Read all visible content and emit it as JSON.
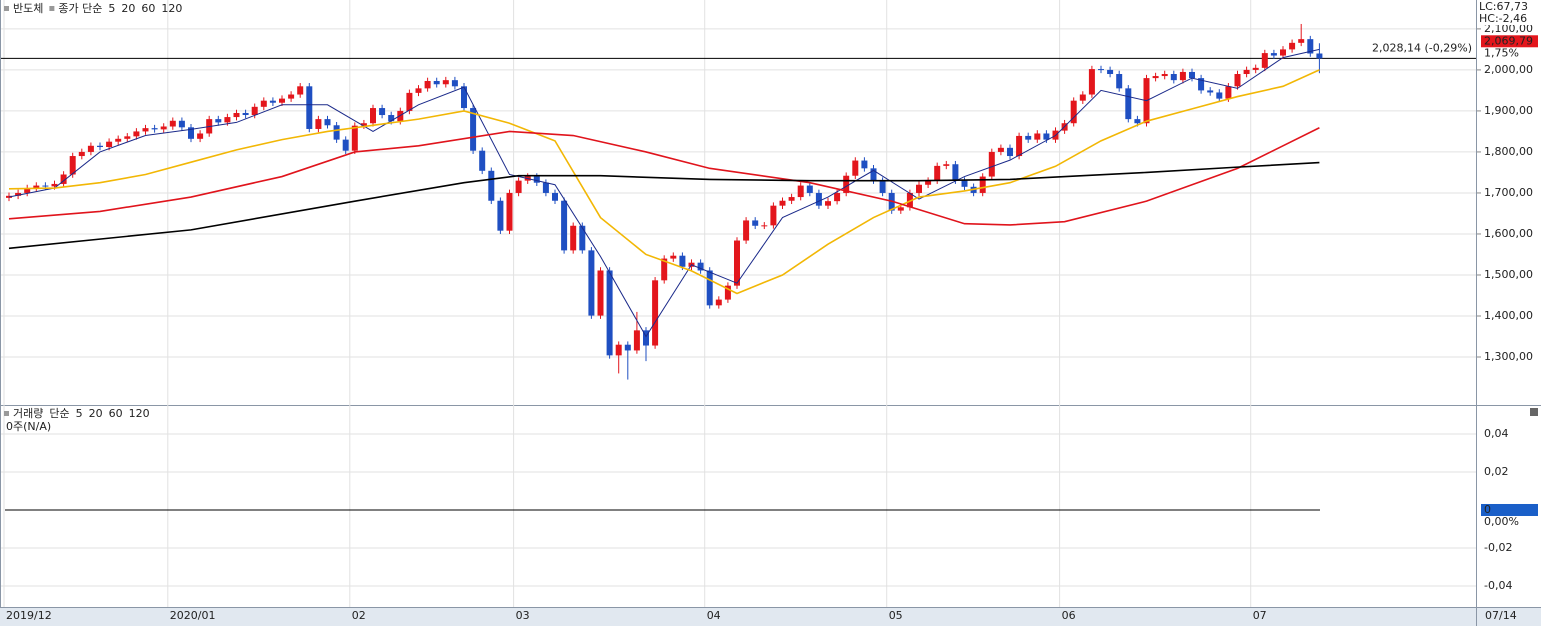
{
  "chart_data": {
    "type": "candlestick",
    "title": "반도체",
    "legend_prefix": "종가 단순",
    "categories": [
      "2019/12",
      null,
      null,
      null,
      null,
      null,
      null,
      null,
      null,
      null,
      null,
      null,
      null,
      null,
      null,
      null,
      null,
      null,
      "2020/01",
      null,
      null,
      null,
      null,
      null,
      null,
      null,
      null,
      null,
      null,
      null,
      null,
      null,
      null,
      null,
      null,
      null,
      null,
      null,
      "02",
      null,
      null,
      null,
      null,
      null,
      null,
      null,
      null,
      null,
      null,
      null,
      null,
      null,
      null,
      null,
      null,
      null,
      "03",
      null,
      null,
      null,
      null,
      null,
      null,
      null,
      null,
      null,
      null,
      null,
      null,
      null,
      null,
      null,
      null,
      null,
      null,
      null,
      null,
      "04",
      null,
      null,
      null,
      null,
      null,
      null,
      null,
      null,
      null,
      null,
      null,
      null,
      null,
      null,
      null,
      null,
      null,
      null,
      null,
      "05",
      null,
      null,
      null,
      null,
      null,
      null,
      null,
      null,
      null,
      null,
      null,
      null,
      null,
      null,
      null,
      null,
      null,
      null,
      "06",
      null,
      null,
      null,
      null,
      null,
      null,
      null,
      null,
      null,
      null,
      null,
      null,
      null,
      null,
      null,
      null,
      null,
      null,
      null,
      null,
      "07",
      null,
      null,
      null,
      null,
      null,
      null,
      "07/14"
    ],
    "open": [
      1688,
      1693,
      1700,
      1712,
      1718,
      1716,
      1722,
      1745,
      1790,
      1800,
      1815,
      1812,
      1825,
      1832,
      1838,
      1850,
      1858,
      1855,
      1862,
      1876,
      1860,
      1832,
      1845,
      1880,
      1872,
      1885,
      1895,
      1890,
      1910,
      1925,
      1920,
      1930,
      1940,
      1960,
      1856,
      1880,
      1865,
      1830,
      1803,
      1864,
      1870,
      1907,
      1890,
      1875,
      1900,
      1944,
      1955,
      1973,
      1965,
      1975,
      1960,
      1907,
      1803,
      1754,
      1681,
      1608,
      1700,
      1730,
      1740,
      1725,
      1700,
      1681,
      1560,
      1620,
      1560,
      1401,
      1511,
      1304,
      1330,
      1316,
      1365,
      1328,
      1487,
      1540,
      1547,
      1520,
      1530,
      1511,
      1426,
      1440,
      1474,
      1584,
      1633,
      1620,
      1621,
      1669,
      1681,
      1690,
      1718,
      1700,
      1669,
      1680,
      1700,
      1742,
      1779,
      1760,
      1730,
      1700,
      1657,
      1665,
      1700,
      1720,
      1730,
      1766,
      1770,
      1730,
      1715,
      1700,
      1740,
      1800,
      1810,
      1790,
      1839,
      1830,
      1845,
      1830,
      1852,
      1870,
      1925,
      1940,
      2002,
      2000,
      1990,
      1955,
      1880,
      1870,
      1980,
      1985,
      1990,
      1975,
      1995,
      1980,
      1950,
      1945,
      1930,
      1960,
      1990,
      2000,
      2005,
      2041,
      2035,
      2050,
      2066,
      2075,
      2040
    ],
    "high": [
      1701,
      1708,
      1720,
      1726,
      1726,
      1730,
      1753,
      1798,
      1808,
      1823,
      1823,
      1833,
      1840,
      1846,
      1858,
      1866,
      1866,
      1870,
      1884,
      1884,
      1868,
      1853,
      1888,
      1888,
      1893,
      1903,
      1903,
      1918,
      1933,
      1933,
      1938,
      1948,
      1968,
      1968,
      1888,
      1888,
      1873,
      1838,
      1872,
      1878,
      1915,
      1915,
      1898,
      1908,
      1952,
      1963,
      1981,
      1981,
      1983,
      1983,
      1968,
      1915,
      1811,
      1762,
      1689,
      1708,
      1738,
      1748,
      1748,
      1733,
      1708,
      1689,
      1628,
      1628,
      1568,
      1519,
      1519,
      1338,
      1338,
      1410,
      1373,
      1495,
      1548,
      1555,
      1555,
      1538,
      1538,
      1519,
      1448,
      1482,
      1592,
      1641,
      1641,
      1629,
      1677,
      1689,
      1698,
      1726,
      1726,
      1708,
      1688,
      1708,
      1750,
      1787,
      1787,
      1768,
      1738,
      1708,
      1673,
      1708,
      1728,
      1738,
      1774,
      1778,
      1778,
      1738,
      1723,
      1748,
      1808,
      1818,
      1818,
      1847,
      1847,
      1853,
      1853,
      1860,
      1878,
      1933,
      1948,
      2010,
      2010,
      2008,
      1998,
      1963,
      1888,
      1988,
      1993,
      1998,
      1998,
      2003,
      2003,
      1988,
      1958,
      1953,
      1968,
      1998,
      2008,
      2013,
      2049,
      2049,
      2058,
      2074,
      2112,
      2083,
      2065
    ],
    "low": [
      1680,
      1685,
      1692,
      1704,
      1708,
      1708,
      1714,
      1737,
      1782,
      1792,
      1804,
      1804,
      1817,
      1824,
      1830,
      1842,
      1847,
      1847,
      1854,
      1852,
      1824,
      1824,
      1837,
      1864,
      1864,
      1877,
      1882,
      1882,
      1902,
      1912,
      1912,
      1922,
      1932,
      1848,
      1848,
      1857,
      1822,
      1795,
      1795,
      1856,
      1862,
      1882,
      1867,
      1867,
      1892,
      1936,
      1947,
      1957,
      1957,
      1952,
      1899,
      1795,
      1746,
      1673,
      1600,
      1600,
      1692,
      1722,
      1717,
      1692,
      1673,
      1552,
      1552,
      1552,
      1393,
      1393,
      1296,
      1260,
      1245,
      1308,
      1290,
      1320,
      1479,
      1532,
      1512,
      1512,
      1503,
      1418,
      1418,
      1432,
      1466,
      1576,
      1612,
      1612,
      1613,
      1661,
      1673,
      1682,
      1692,
      1661,
      1661,
      1672,
      1692,
      1734,
      1752,
      1722,
      1692,
      1649,
      1649,
      1657,
      1692,
      1712,
      1722,
      1758,
      1722,
      1707,
      1692,
      1692,
      1732,
      1792,
      1782,
      1782,
      1822,
      1822,
      1822,
      1822,
      1844,
      1862,
      1917,
      1932,
      1992,
      1982,
      1947,
      1872,
      1862,
      1862,
      1972,
      1977,
      1967,
      1967,
      1972,
      1942,
      1937,
      1922,
      1922,
      1952,
      1982,
      1992,
      1997,
      2027,
      2027,
      2042,
      2058,
      2032,
      1992
    ],
    "close": [
      1693,
      1700,
      1712,
      1718,
      1716,
      1722,
      1745,
      1790,
      1800,
      1815,
      1812,
      1825,
      1832,
      1838,
      1850,
      1858,
      1855,
      1862,
      1876,
      1860,
      1832,
      1845,
      1880,
      1872,
      1885,
      1895,
      1890,
      1910,
      1925,
      1920,
      1930,
      1940,
      1960,
      1856,
      1880,
      1865,
      1830,
      1803,
      1864,
      1870,
      1907,
      1890,
      1875,
      1900,
      1944,
      1955,
      1973,
      1965,
      1975,
      1960,
      1907,
      1803,
      1754,
      1681,
      1608,
      1700,
      1730,
      1740,
      1725,
      1700,
      1681,
      1560,
      1620,
      1560,
      1401,
      1511,
      1304,
      1330,
      1316,
      1365,
      1328,
      1487,
      1540,
      1547,
      1520,
      1530,
      1511,
      1426,
      1440,
      1474,
      1584,
      1633,
      1620,
      1621,
      1669,
      1681,
      1690,
      1718,
      1700,
      1669,
      1680,
      1700,
      1742,
      1779,
      1760,
      1730,
      1700,
      1657,
      1665,
      1700,
      1720,
      1730,
      1766,
      1770,
      1730,
      1715,
      1700,
      1740,
      1800,
      1810,
      1790,
      1839,
      1830,
      1845,
      1830,
      1852,
      1870,
      1925,
      1940,
      2002,
      2000,
      1990,
      1955,
      1880,
      1870,
      1980,
      1985,
      1990,
      1975,
      1995,
      1980,
      1950,
      1945,
      1930,
      1960,
      1990,
      2000,
      2005,
      2041,
      2035,
      2050,
      2066,
      2075,
      2040,
      2028.14
    ],
    "up_color": "#e3161c",
    "down_color": "#1f4fc2",
    "series": [
      {
        "name": "5",
        "color": "#1b2a8a",
        "x": [
          0,
          5,
          10,
          15,
          20,
          25,
          30,
          35,
          40,
          45,
          50,
          55,
          60,
          65,
          70,
          75,
          80,
          85,
          90,
          95,
          100,
          105,
          110,
          115,
          120,
          125,
          130,
          135,
          140,
          144
        ],
        "values": [
          1690,
          1712,
          1800,
          1840,
          1855,
          1872,
          1915,
          1915,
          1850,
          1915,
          1958,
          1745,
          1720,
          1545,
          1350,
          1525,
          1480,
          1640,
          1690,
          1755,
          1685,
          1740,
          1780,
          1840,
          1950,
          1925,
          1980,
          1955,
          2030,
          2050
        ]
      },
      {
        "name": "20",
        "color": "#f2b705",
        "x": [
          0,
          5,
          10,
          15,
          20,
          25,
          30,
          35,
          40,
          45,
          50,
          55,
          60,
          65,
          70,
          75,
          80,
          85,
          90,
          95,
          100,
          105,
          110,
          115,
          120,
          125,
          130,
          135,
          140,
          144
        ],
        "values": [
          1710,
          1712,
          1725,
          1745,
          1775,
          1805,
          1830,
          1850,
          1865,
          1880,
          1900,
          1870,
          1827,
          1640,
          1550,
          1510,
          1455,
          1500,
          1575,
          1640,
          1690,
          1705,
          1725,
          1765,
          1827,
          1875,
          1905,
          1935,
          1960,
          2000
        ]
      },
      {
        "name": "60",
        "color": "#e0141c",
        "x": [
          0,
          10,
          20,
          30,
          38,
          45,
          55,
          62,
          70,
          77,
          88,
          97,
          105,
          110,
          116,
          125,
          130,
          135,
          140,
          144
        ],
        "values": [
          1637,
          1655,
          1690,
          1740,
          1800,
          1815,
          1850,
          1840,
          1800,
          1760,
          1725,
          1680,
          1625,
          1622,
          1630,
          1680,
          1720,
          1760,
          1815,
          1859
        ]
      },
      {
        "name": "120",
        "color": "#000000",
        "x": [
          0,
          20,
          38,
          50,
          56,
          65,
          77,
          88,
          100,
          110,
          125,
          135,
          144
        ],
        "values": [
          1565,
          1610,
          1680,
          1725,
          1742,
          1742,
          1733,
          1730,
          1730,
          1733,
          1750,
          1763,
          1774
        ]
      }
    ],
    "ylim": [
      1183,
      2168
    ],
    "yticks": [
      {
        "value": 1300,
        "label": "1,300,00"
      },
      {
        "value": 1400,
        "label": "1,400,00"
      },
      {
        "value": 1500,
        "label": "1,500,00"
      },
      {
        "value": 1600,
        "label": "1,600,00"
      },
      {
        "value": 1700,
        "label": "1,700,00"
      },
      {
        "value": 1800,
        "label": "1,800,00"
      },
      {
        "value": 1900,
        "label": "1,900,00"
      },
      {
        "value": 2000,
        "label": "2,000,00"
      },
      {
        "value": 2100,
        "label": "2,100,00"
      }
    ],
    "grid": true,
    "ref_line": {
      "value": 2028.14,
      "label": "2,028,14 (-0,29%)"
    },
    "last_price": {
      "value": 2069.79,
      "label": "2,069,79"
    },
    "change_label": "1,75%",
    "lc_label": "LC:67,73",
    "hc_label": "HC:-2,46",
    "volume_pane": {
      "title": "거래량",
      "legend_prefix": "단순",
      "legend": [
        {
          "name": "5",
          "color": "#1b2a8a"
        },
        {
          "name": "20",
          "color": "#e0141c"
        },
        {
          "name": "60",
          "color": "#1a8a2a"
        },
        {
          "name": "120",
          "color": "#000000"
        }
      ],
      "note": "0주(N/A)",
      "ylim": [
        -0.0505,
        0.0547
      ],
      "yticks": [
        {
          "value": 0.04,
          "label": "0,04"
        },
        {
          "value": 0.02,
          "label": "0,02"
        },
        {
          "value": -0.02,
          "label": "-0,02"
        },
        {
          "value": -0.04,
          "label": "-0,04"
        }
      ],
      "zero": {
        "value": 0,
        "label": "0"
      },
      "zero_pct": "0,00%"
    }
  }
}
